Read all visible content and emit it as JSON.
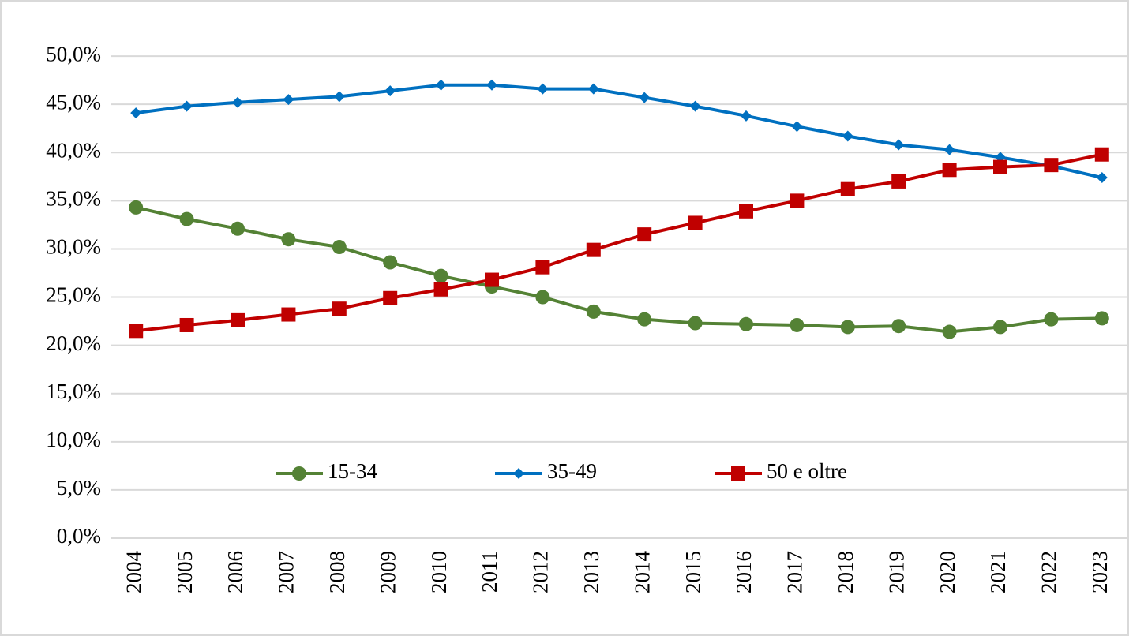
{
  "chart_data": {
    "type": "line",
    "categories": [
      "2004",
      "2005",
      "2006",
      "2007",
      "2008",
      "2009",
      "2010",
      "2011",
      "2012",
      "2013",
      "2014",
      "2015",
      "2016",
      "2017",
      "2018",
      "2019",
      "2020",
      "2021",
      "2022",
      "2023"
    ],
    "series": [
      {
        "name": "15-34",
        "color": "#548235",
        "marker": "circle",
        "values": [
          34.3,
          33.1,
          32.1,
          31.0,
          30.2,
          28.6,
          27.2,
          26.1,
          25.0,
          23.5,
          22.7,
          22.3,
          22.2,
          22.1,
          21.9,
          22.0,
          21.4,
          21.9,
          22.7,
          22.8
        ]
      },
      {
        "name": "35-49",
        "color": "#0070c0",
        "marker": "diamond",
        "values": [
          44.1,
          44.8,
          45.2,
          45.5,
          45.8,
          46.4,
          47.0,
          47.0,
          46.6,
          46.6,
          45.7,
          44.8,
          43.8,
          42.7,
          41.7,
          40.8,
          40.3,
          39.5,
          38.6,
          37.4
        ]
      },
      {
        "name": "50 e oltre",
        "color": "#c00000",
        "marker": "square",
        "values": [
          21.5,
          22.1,
          22.6,
          23.2,
          23.8,
          24.9,
          25.8,
          26.8,
          28.1,
          29.9,
          31.5,
          32.7,
          33.9,
          35.0,
          36.2,
          37.0,
          38.2,
          38.5,
          38.7,
          39.8
        ]
      }
    ],
    "ylim": [
      0,
      55
    ],
    "yticks": [
      {
        "value": 0,
        "label": "0,0%"
      },
      {
        "value": 5,
        "label": "5,0%"
      },
      {
        "value": 10,
        "label": "10,0%"
      },
      {
        "value": 15,
        "label": "15,0%"
      },
      {
        "value": 20,
        "label": "20,0%"
      },
      {
        "value": 25,
        "label": "25,0%"
      },
      {
        "value": 30,
        "label": "30,0%"
      },
      {
        "value": 35,
        "label": "35,0%"
      },
      {
        "value": 40,
        "label": "40,0%"
      },
      {
        "value": 45,
        "label": "45,0%"
      },
      {
        "value": 50,
        "label": "50,0%"
      }
    ],
    "grid": true,
    "legend": "center"
  }
}
